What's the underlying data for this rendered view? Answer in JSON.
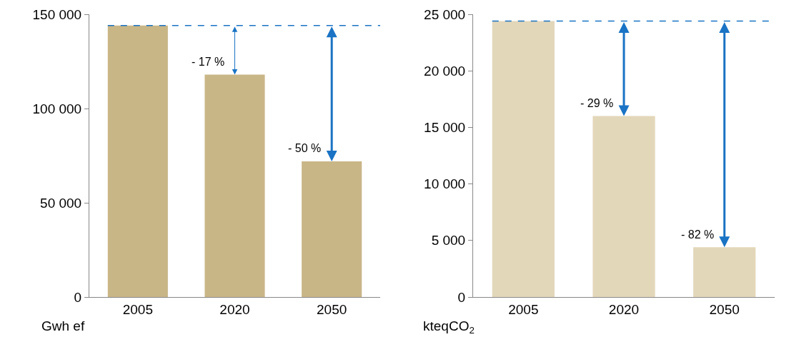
{
  "chart_data": [
    {
      "type": "bar",
      "categories": [
        "2005",
        "2020",
        "2050"
      ],
      "values": [
        144000,
        118000,
        72000
      ],
      "color": "#c9b687",
      "ylim": [
        0,
        150000
      ],
      "yticks": [
        0,
        {
          "value": 50000,
          "label": "50 000"
        },
        {
          "value": 100000,
          "label": "100 000"
        },
        {
          "value": 150000,
          "label": "150 000"
        }
      ],
      "ylabel": "Gwh ef",
      "ref_lines": [
        {
          "axis": "y",
          "value": 144000,
          "color": "#1a73c4",
          "line_style": "dashed"
        }
      ],
      "annotations": [
        {
          "text": "- 17 %",
          "x": "2020",
          "y": 118000
        },
        {
          "text": "- 50 %",
          "x": "2050",
          "y": 72000
        }
      ]
    },
    {
      "type": "bar",
      "categories": [
        "2005",
        "2020",
        "2050"
      ],
      "values": [
        24400,
        16000,
        4400
      ],
      "color": "#e3d7ba",
      "ylim": [
        0,
        25000
      ],
      "yticks": [
        0,
        {
          "value": 5000,
          "label": "5 000"
        },
        {
          "value": 10000,
          "label": "10 000"
        },
        {
          "value": 15000,
          "label": "15 000"
        },
        {
          "value": 20000,
          "label": "20 000"
        },
        {
          "value": 25000,
          "label": "25 000"
        }
      ],
      "ylabel": "kteqCO$_{2}$",
      "ref_lines": [
        {
          "axis": "y",
          "value": 24400,
          "color": "#1a73c4",
          "line_style": "dashed"
        }
      ],
      "annotations": [
        {
          "text": "- 29 %",
          "x": "2020",
          "y": 16000
        },
        {
          "text": "- 82 %",
          "x": "2050",
          "y": 4400
        }
      ]
    }
  ]
}
